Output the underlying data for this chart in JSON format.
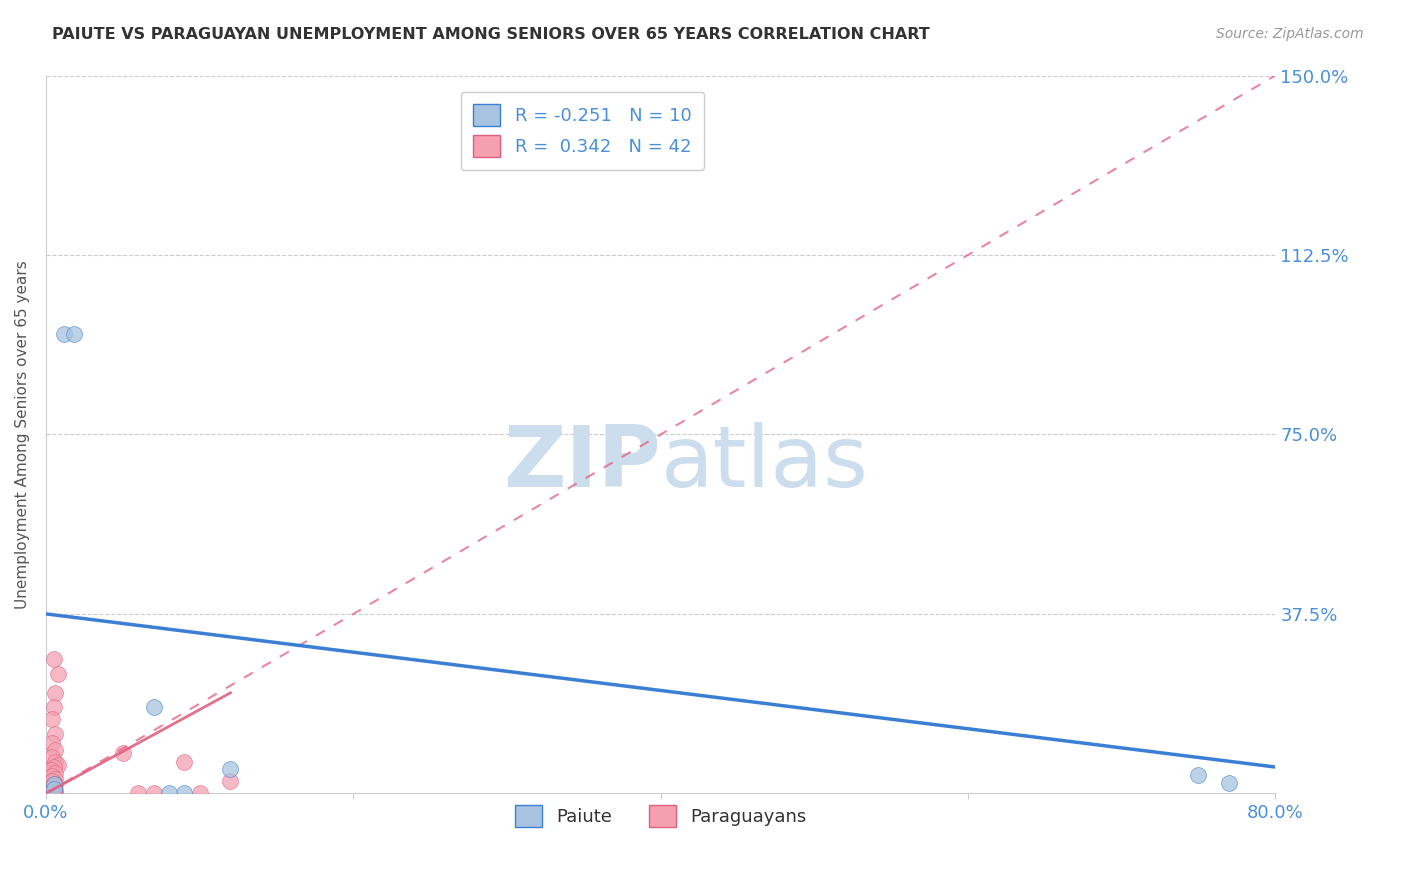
{
  "title": "PAIUTE VS PARAGUAYAN UNEMPLOYMENT AMONG SENIORS OVER 65 YEARS CORRELATION CHART",
  "source": "Source: ZipAtlas.com",
  "ylabel": "Unemployment Among Seniors over 65 years",
  "xlabel": "",
  "xlim": [
    0.0,
    0.8
  ],
  "ylim": [
    0.0,
    1.5
  ],
  "xticks": [
    0.0,
    0.2,
    0.4,
    0.6,
    0.8
  ],
  "yticks": [
    0.0,
    0.375,
    0.75,
    1.125,
    1.5
  ],
  "ytick_labels": [
    "",
    "37.5%",
    "75.0%",
    "112.5%",
    "150.0%"
  ],
  "xtick_labels": [
    "0.0%",
    "",
    "",
    "",
    "80.0%"
  ],
  "background_color": "#ffffff",
  "grid_color": "#cccccc",
  "paiute_color": "#a8c4e0",
  "paraguayan_color": "#f4a0b0",
  "paiute_line_color": "#3a7fd5",
  "paraguayan_line_color": "#e06080",
  "watermark_color": "#ccdded",
  "legend_paiute_label": "R = -0.251   N = 10",
  "legend_paraguayan_label": "R =  0.342   N = 42",
  "legend_label_paiute": "Paiute",
  "legend_label_paraguayan": "Paraguayans",
  "paiute_R": -0.251,
  "paiute_N": 10,
  "paraguayan_R": 0.342,
  "paraguayan_N": 42,
  "paiute_line_x0": 0.0,
  "paiute_line_y0": 0.375,
  "paiute_line_x1": 0.8,
  "paiute_line_y1": 0.055,
  "paraguayan_line_x0": 0.0,
  "paraguayan_line_y0": 0.0,
  "paraguayan_line_x1": 0.8,
  "paraguayan_line_y1": 1.5,
  "paiute_points": [
    [
      0.012,
      0.96
    ],
    [
      0.018,
      0.96
    ],
    [
      0.07,
      0.18
    ],
    [
      0.12,
      0.05
    ],
    [
      0.005,
      0.02
    ],
    [
      0.005,
      0.01
    ],
    [
      0.75,
      0.038
    ],
    [
      0.77,
      0.022
    ],
    [
      0.09,
      0.0
    ],
    [
      0.08,
      0.0
    ]
  ],
  "paraguayan_points": [
    [
      0.005,
      0.28
    ],
    [
      0.008,
      0.25
    ],
    [
      0.006,
      0.21
    ],
    [
      0.005,
      0.18
    ],
    [
      0.004,
      0.155
    ],
    [
      0.006,
      0.125
    ],
    [
      0.004,
      0.105
    ],
    [
      0.006,
      0.09
    ],
    [
      0.004,
      0.075
    ],
    [
      0.006,
      0.065
    ],
    [
      0.008,
      0.06
    ],
    [
      0.005,
      0.055
    ],
    [
      0.003,
      0.048
    ],
    [
      0.006,
      0.042
    ],
    [
      0.004,
      0.036
    ],
    [
      0.006,
      0.03
    ],
    [
      0.004,
      0.025
    ],
    [
      0.006,
      0.02
    ],
    [
      0.004,
      0.016
    ],
    [
      0.003,
      0.012
    ],
    [
      0.005,
      0.009
    ],
    [
      0.006,
      0.007
    ],
    [
      0.004,
      0.005
    ],
    [
      0.003,
      0.003
    ],
    [
      0.005,
      0.002
    ],
    [
      0.004,
      0.001
    ],
    [
      0.003,
      0.0
    ],
    [
      0.005,
      0.0
    ],
    [
      0.003,
      0.0
    ],
    [
      0.005,
      0.0
    ],
    [
      0.004,
      0.0
    ],
    [
      0.006,
      0.0
    ],
    [
      0.003,
      0.0
    ],
    [
      0.004,
      0.0
    ],
    [
      0.005,
      0.0
    ],
    [
      0.003,
      0.0
    ],
    [
      0.12,
      0.025
    ],
    [
      0.09,
      0.065
    ],
    [
      0.1,
      0.0
    ],
    [
      0.07,
      0.0
    ],
    [
      0.05,
      0.085
    ],
    [
      0.06,
      0.0
    ]
  ]
}
